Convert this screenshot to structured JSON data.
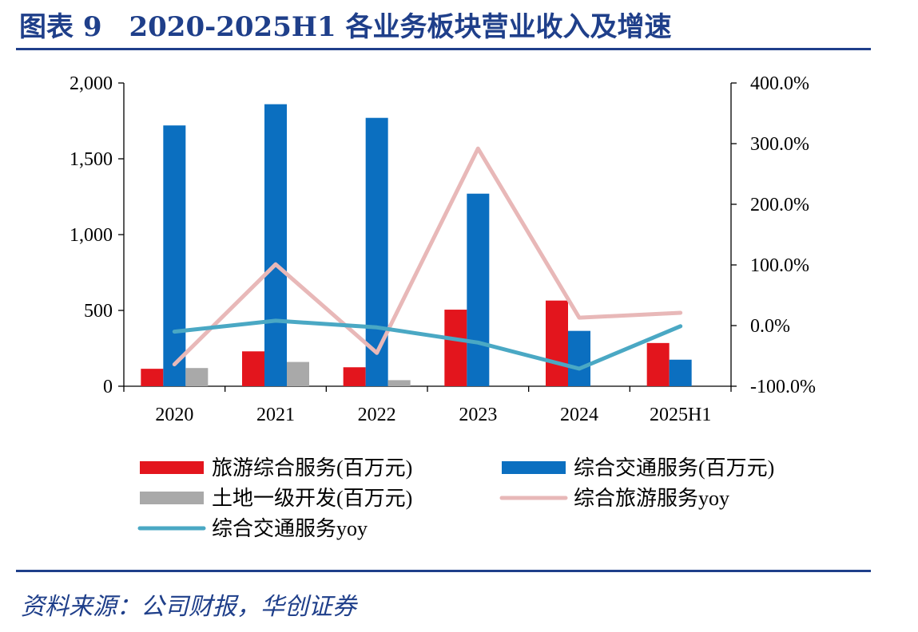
{
  "figure": {
    "title": "图表 9　2020-2025H1 各业务板块营业收入及增速",
    "source": "资料来源：公司财报，华创证券"
  },
  "colors": {
    "tourism": "#e3151d",
    "transport": "#0b6fc0",
    "land": "#a9a9a9",
    "tourism_yoy": "#e8b8b8",
    "transport_yoy": "#4aa8c4",
    "rule": "#1f3f8a"
  },
  "chart_data": {
    "type": "bar",
    "categories": [
      "2020",
      "2021",
      "2022",
      "2023",
      "2024",
      "2025H1"
    ],
    "series": [
      {
        "name": "旅游综合服务(百万元)",
        "kind": "bar",
        "axis": "left",
        "color_key": "tourism",
        "values": [
          115,
          230,
          125,
          505,
          565,
          285
        ]
      },
      {
        "name": "综合交通服务(百万元)",
        "kind": "bar",
        "axis": "left",
        "color_key": "transport",
        "values": [
          1720,
          1860,
          1770,
          1270,
          365,
          175
        ]
      },
      {
        "name": "土地一级开发(百万元)",
        "kind": "bar",
        "axis": "left",
        "color_key": "land",
        "values": [
          120,
          160,
          40,
          0,
          0,
          0
        ]
      },
      {
        "name": "综合旅游服务yoy",
        "kind": "line",
        "axis": "right",
        "color_key": "tourism_yoy",
        "values": [
          -64,
          101,
          -45,
          292,
          13,
          21
        ]
      },
      {
        "name": "综合交通服务yoy",
        "kind": "line",
        "axis": "right",
        "color_key": "transport_yoy",
        "values": [
          -10,
          8,
          -3,
          -28,
          -71,
          -1
        ]
      }
    ],
    "y_left": {
      "min": 0,
      "max": 2000,
      "ticks": [
        "0",
        "500",
        "1,000",
        "1,500",
        "2,000"
      ],
      "tick_values": [
        0,
        500,
        1000,
        1500,
        2000
      ]
    },
    "y_right": {
      "min": -100,
      "max": 400,
      "ticks": [
        "-100.0%",
        "0.0%",
        "100.0%",
        "200.0%",
        "300.0%",
        "400.0%"
      ],
      "tick_values": [
        -100,
        0,
        100,
        200,
        300,
        400
      ]
    },
    "grid": false,
    "legend_position": "bottom"
  }
}
